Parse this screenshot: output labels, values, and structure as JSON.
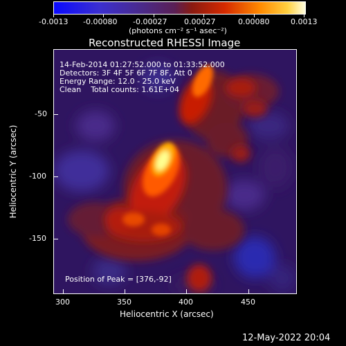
{
  "colorbar": {
    "tick_labels": [
      "-0.0013",
      "-0.00080",
      "-0.00027",
      "0.00027",
      "0.00080",
      "0.0013"
    ],
    "units_label": "(photons cm⁻² s⁻¹ asec⁻²)"
  },
  "title": "Reconstructed RHESSI Image",
  "info": {
    "time_range": "14-Feb-2014 01:27:52.000 to 01:33:52.000",
    "detectors": "Detectors: 3F 4F 5F 6F 7F 8F, Att 0",
    "energy_range": "Energy Range: 12.0 - 25.0 keV",
    "algorithm": "Clean    Total counts: 1.61E+04",
    "peak": "Position of Peak = [376,-92]"
  },
  "axes": {
    "xlabel": "Heliocentric X (arcsec)",
    "ylabel": "Heliocentric Y (arcsec)",
    "x_ticks": [
      "300",
      "350",
      "400",
      "450"
    ],
    "y_ticks": [
      "-50",
      "-100",
      "-150"
    ]
  },
  "timestamp": "12-May-2022 20:04",
  "colors": {
    "background": "#000000",
    "colormap": [
      "#1b1bff",
      "#2b2bd0",
      "#3a1f8a",
      "#4a1f7a",
      "#7a1f2a",
      "#c01a00",
      "#ff5a00",
      "#ffb000",
      "#ffffc0"
    ]
  }
}
